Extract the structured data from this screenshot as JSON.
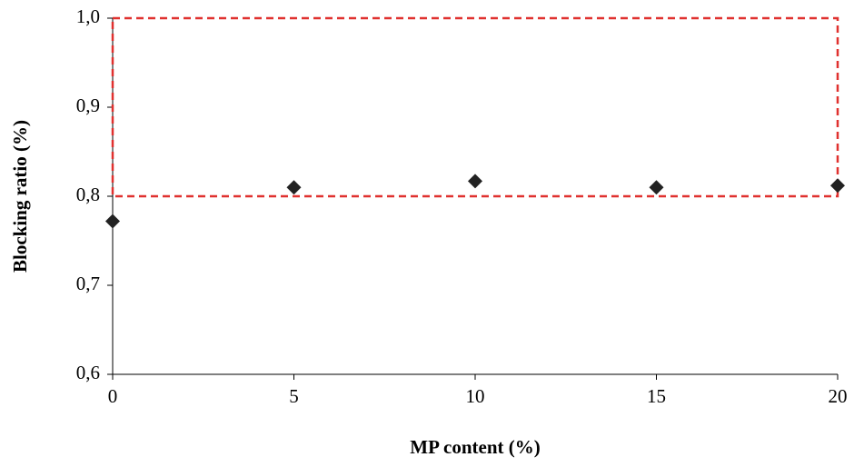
{
  "chart_data": {
    "type": "scatter",
    "x_label": "MP content (%)",
    "y_label": "Blocking ratio (%)",
    "xlim": [
      0,
      20
    ],
    "xticks": [
      0,
      5,
      10,
      15,
      20
    ],
    "ylim": [
      0.6,
      1.0
    ],
    "yticks": [
      {
        "value": 0.6,
        "label": "0,6"
      },
      {
        "value": 0.7,
        "label": "0,7"
      },
      {
        "value": 0.8,
        "label": "0,8"
      },
      {
        "value": 0.9,
        "label": "0,9"
      },
      {
        "value": 1.0,
        "label": "1,0"
      }
    ],
    "series": [
      {
        "color": "#222222",
        "x": [
          0,
          5,
          10,
          15,
          20
        ],
        "values": [
          0.772,
          0.81,
          0.817,
          0.81,
          0.812
        ]
      }
    ],
    "band": {
      "ylim": [
        0.8,
        1.0
      ],
      "color": "#e0312f"
    }
  }
}
